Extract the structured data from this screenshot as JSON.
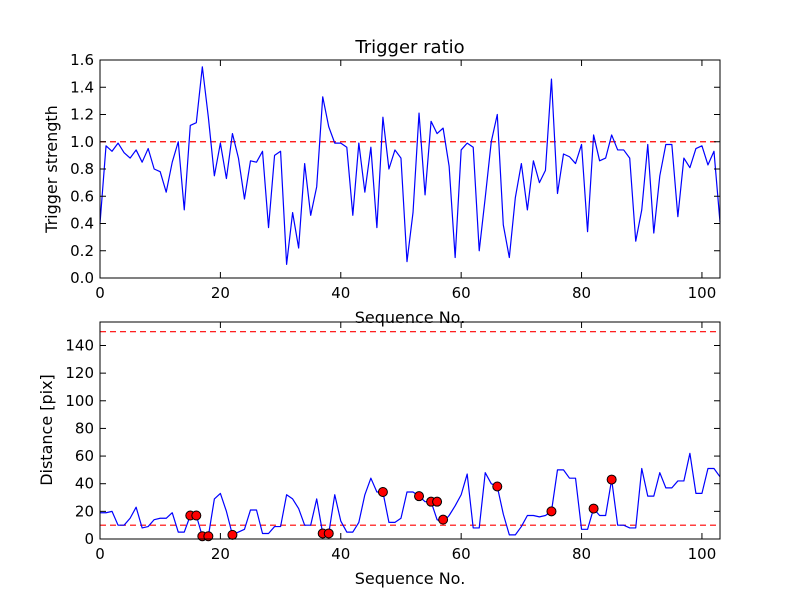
{
  "chart_data": [
    {
      "type": "line",
      "title": "Trigger ratio",
      "xlabel": "Sequence No.",
      "ylabel": "Trigger strength",
      "xlim": [
        0,
        103
      ],
      "ylim": [
        0,
        1.6
      ],
      "xticks": [
        "0",
        "20",
        "40",
        "60",
        "80",
        "100"
      ],
      "yticks": [
        "0.0",
        "0.2",
        "0.4",
        "0.6",
        "0.8",
        "1.0",
        "1.2",
        "1.4",
        "1.6"
      ],
      "threshold": 1.0,
      "series": [
        {
          "name": "Trigger strength",
          "color": "#0000ff",
          "x": [
            0,
            1,
            2,
            3,
            4,
            5,
            6,
            7,
            8,
            9,
            10,
            11,
            12,
            13,
            14,
            15,
            16,
            17,
            18,
            19,
            20,
            21,
            22,
            23,
            24,
            25,
            26,
            27,
            28,
            29,
            30,
            31,
            32,
            33,
            34,
            35,
            36,
            37,
            38,
            39,
            40,
            41,
            42,
            43,
            44,
            45,
            46,
            47,
            48,
            49,
            50,
            51,
            52,
            53,
            54,
            55,
            56,
            57,
            58,
            59,
            60,
            61,
            62,
            63,
            64,
            65,
            66,
            67,
            68,
            69,
            70,
            71,
            72,
            73,
            74,
            75,
            76,
            77,
            78,
            79,
            80,
            81,
            82,
            83,
            84,
            85,
            86,
            87,
            88,
            89,
            90,
            91,
            92,
            93,
            94,
            95,
            96,
            97,
            98,
            99,
            100,
            101,
            102,
            103
          ],
          "values": [
            0.4,
            0.97,
            0.93,
            0.99,
            0.92,
            0.88,
            0.94,
            0.85,
            0.95,
            0.8,
            0.78,
            0.63,
            0.85,
            1.0,
            0.5,
            1.12,
            1.14,
            1.55,
            1.18,
            0.75,
            0.99,
            0.73,
            1.06,
            0.88,
            0.58,
            0.86,
            0.85,
            0.93,
            0.37,
            0.9,
            0.93,
            0.1,
            0.48,
            0.22,
            0.84,
            0.46,
            0.67,
            1.33,
            1.11,
            0.99,
            0.99,
            0.96,
            0.46,
            0.99,
            0.63,
            0.96,
            0.37,
            1.18,
            0.8,
            0.94,
            0.88,
            0.12,
            0.48,
            1.21,
            0.61,
            1.15,
            1.06,
            1.1,
            0.82,
            0.15,
            0.94,
            0.99,
            0.96,
            0.2,
            0.59,
            1.0,
            1.2,
            0.39,
            0.15,
            0.59,
            0.84,
            0.5,
            0.86,
            0.7,
            0.79,
            1.46,
            0.62,
            0.91,
            0.89,
            0.84,
            0.98,
            0.34,
            1.05,
            0.86,
            0.88,
            1.05,
            0.94,
            0.94,
            0.88,
            0.27,
            0.5,
            0.98,
            0.33,
            0.75,
            0.98,
            0.98,
            0.45,
            0.88,
            0.81,
            0.95,
            0.97,
            0.83,
            0.93,
            0.41
          ]
        }
      ]
    },
    {
      "type": "line",
      "title": "",
      "xlabel": "Sequence No.",
      "ylabel": "Distance [pix]",
      "xlim": [
        0,
        103
      ],
      "ylim": [
        0,
        157
      ],
      "xticks": [
        "0",
        "20",
        "40",
        "60",
        "80",
        "100"
      ],
      "yticks": [
        "0",
        "20",
        "40",
        "60",
        "80",
        "100",
        "120",
        "140"
      ],
      "thresholds": [
        10,
        150
      ],
      "series": [
        {
          "name": "Distance",
          "color": "#0000ff",
          "x": [
            0,
            1,
            2,
            3,
            4,
            5,
            6,
            7,
            8,
            9,
            10,
            11,
            12,
            13,
            14,
            15,
            16,
            17,
            18,
            19,
            20,
            21,
            22,
            23,
            24,
            25,
            26,
            27,
            28,
            29,
            30,
            31,
            32,
            33,
            34,
            35,
            36,
            37,
            38,
            39,
            40,
            41,
            42,
            43,
            44,
            45,
            46,
            47,
            48,
            49,
            50,
            51,
            52,
            53,
            54,
            55,
            56,
            57,
            58,
            59,
            60,
            61,
            62,
            63,
            64,
            65,
            66,
            67,
            68,
            69,
            70,
            71,
            72,
            73,
            74,
            75,
            76,
            77,
            78,
            79,
            80,
            81,
            82,
            83,
            84,
            85,
            86,
            87,
            88,
            89,
            90,
            91,
            92,
            93,
            94,
            95,
            96,
            97,
            98,
            99,
            100,
            101,
            102,
            103
          ],
          "values": [
            19,
            19,
            20,
            10,
            10,
            15,
            23,
            8,
            9,
            14,
            15,
            15,
            19,
            5,
            5,
            17,
            17,
            2,
            2,
            29,
            33,
            20,
            3,
            5,
            7,
            21,
            21,
            4,
            4,
            9,
            9,
            32,
            29,
            22,
            10,
            10,
            29,
            4,
            4,
            32,
            13,
            5,
            5,
            12,
            32,
            44,
            34,
            34,
            12,
            12,
            15,
            34,
            34,
            31,
            27,
            27,
            14,
            12,
            17,
            24,
            32,
            47,
            8,
            8,
            48,
            40,
            38,
            18,
            3,
            3,
            9,
            17,
            17,
            16,
            17,
            20,
            50,
            50,
            44,
            44,
            7,
            7,
            22,
            17,
            17,
            43,
            10,
            10,
            8,
            8,
            51,
            31,
            31,
            48,
            37,
            37,
            42,
            42,
            62,
            33,
            33,
            51,
            51,
            45
          ]
        },
        {
          "name": "Flagged",
          "color": "#ff0000",
          "marker": "circle",
          "x": [
            15,
            16,
            17,
            18,
            22,
            37,
            38,
            47,
            53,
            55,
            56,
            57,
            66,
            75,
            82,
            85
          ],
          "values": [
            17,
            17,
            2,
            2,
            3,
            4,
            4,
            34,
            31,
            27,
            27,
            14,
            38,
            20,
            22,
            43
          ]
        }
      ]
    }
  ]
}
